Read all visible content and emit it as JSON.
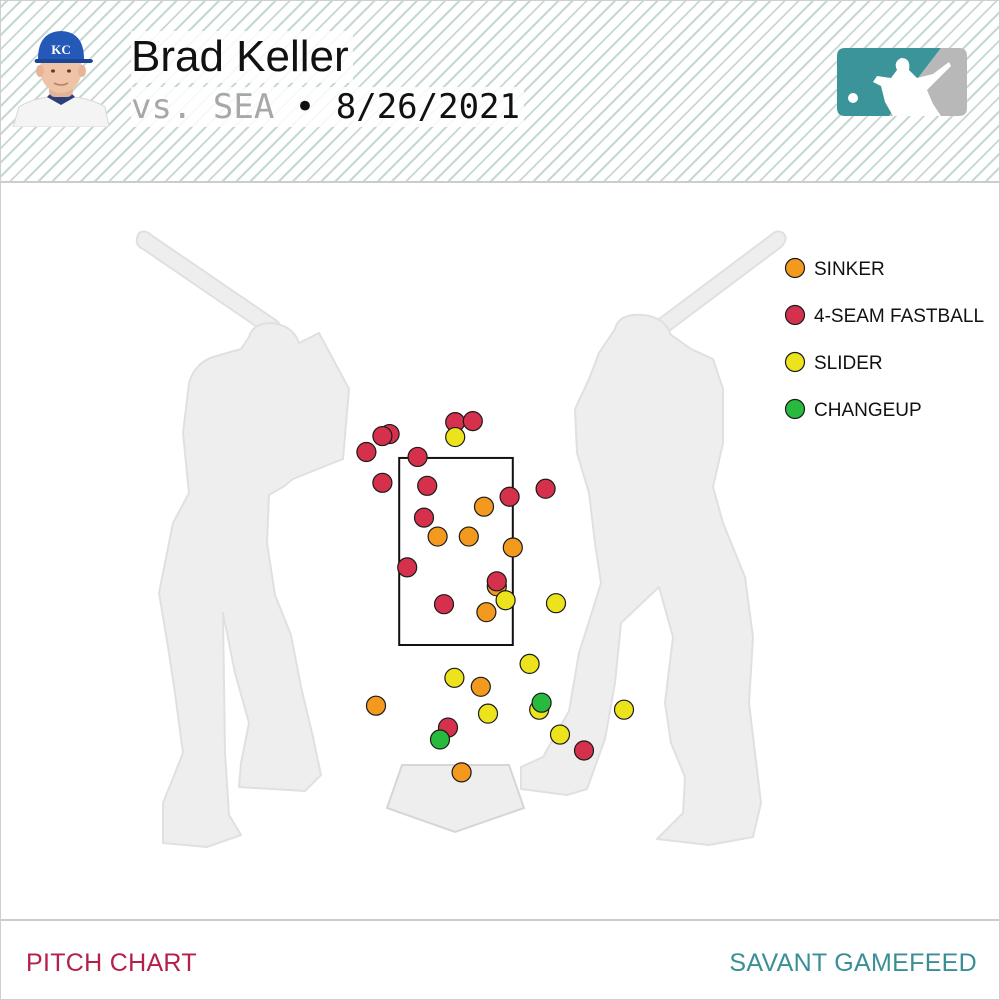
{
  "header": {
    "player_name": "Brad Keller",
    "opponent": "vs. SEA",
    "separator": "•",
    "date": "8/26/2021",
    "team_cap_letters": "KC",
    "icons": {
      "player_headshot": "player-headshot-icon",
      "league_logo": "mlb-logo-icon"
    }
  },
  "footer": {
    "left_label": "PITCH CHART",
    "right_label": "SAVANT GAMEFEED"
  },
  "colors": {
    "sinker": "#f39a1e",
    "fastball": "#d5314c",
    "slider": "#ece31d",
    "changeup": "#27ba3f",
    "footer_left": "#b5204b",
    "footer_right": "#3a8f96",
    "logo_teal": "#3a9499",
    "silhouette": "#eeeeee"
  },
  "chart_data": {
    "type": "scatter",
    "title": "",
    "xlabel": "",
    "ylabel": "",
    "xlim": [
      -2.5,
      2.5
    ],
    "ylim": [
      0.25,
      4.75
    ],
    "strike_zone": {
      "x": [
        -0.71,
        0.71
      ],
      "z": [
        1.52,
        3.4
      ]
    },
    "legend_position": "top-right",
    "series": [
      {
        "name": "SINKER",
        "color": "#f39a1e",
        "points": [
          [
            0.35,
            2.91
          ],
          [
            -0.23,
            2.61
          ],
          [
            0.16,
            2.61
          ],
          [
            0.71,
            2.5
          ],
          [
            0.51,
            2.11
          ],
          [
            0.38,
            1.85
          ],
          [
            0.31,
            1.1
          ],
          [
            -1.0,
            0.91
          ],
          [
            0.07,
            0.24
          ]
        ]
      },
      {
        "name": "4-SEAM FASTBALL",
        "color": "#d5314c",
        "points": [
          [
            -0.01,
            3.76
          ],
          [
            0.21,
            3.77
          ],
          [
            -0.83,
            3.64
          ],
          [
            -0.92,
            3.62
          ],
          [
            -1.12,
            3.46
          ],
          [
            -0.48,
            3.41
          ],
          [
            -0.36,
            3.12
          ],
          [
            -0.92,
            3.15
          ],
          [
            1.12,
            3.09
          ],
          [
            0.67,
            3.01
          ],
          [
            -0.4,
            2.8
          ],
          [
            -0.61,
            2.3
          ],
          [
            0.51,
            2.16
          ],
          [
            -0.15,
            1.93
          ],
          [
            -0.1,
            0.69
          ],
          [
            1.6,
            0.46
          ]
        ]
      },
      {
        "name": "SLIDER",
        "color": "#ece31d",
        "points": [
          [
            -0.01,
            3.61
          ],
          [
            0.62,
            1.97
          ],
          [
            1.25,
            1.94
          ],
          [
            0.92,
            1.33
          ],
          [
            -0.02,
            1.19
          ],
          [
            1.04,
            0.87
          ],
          [
            2.1,
            0.87
          ],
          [
            0.4,
            0.83
          ],
          [
            1.3,
            0.62
          ]
        ]
      },
      {
        "name": "CHANGEUP",
        "color": "#27ba3f",
        "points": [
          [
            1.07,
            0.94
          ],
          [
            -0.2,
            0.57
          ]
        ]
      }
    ]
  }
}
